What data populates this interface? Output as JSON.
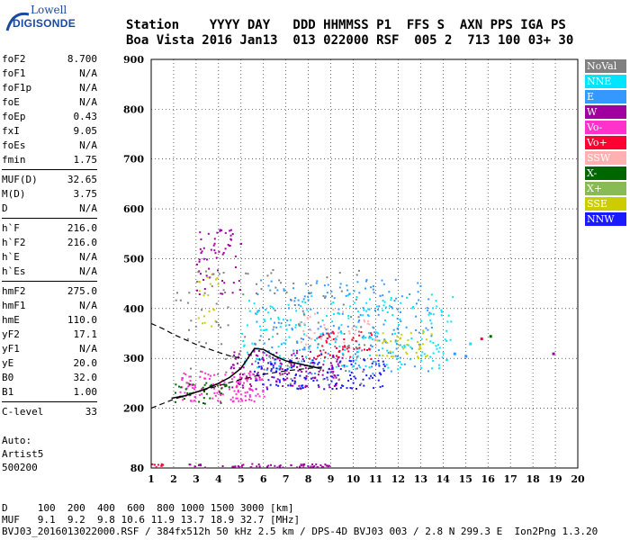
{
  "logo": {
    "line1": "Lowell",
    "line2": "DIGISONDE"
  },
  "header": {
    "labels": "Station    YYYY DAY   DDD HHMMSS P1  FFS S  AXN PPS IGA PS",
    "values": "Boa Vista 2016 Jan13  013 022000 RSF  005 2  713 100 03+ 30"
  },
  "params": [
    {
      "group": [
        {
          "name": "foF2",
          "value": "8.700"
        },
        {
          "name": "foF1",
          "value": "N/A"
        },
        {
          "name": "foF1p",
          "value": "N/A"
        },
        {
          "name": "foE",
          "value": "N/A"
        },
        {
          "name": "foEp",
          "value": "0.43"
        },
        {
          "name": "fxI",
          "value": "9.05"
        },
        {
          "name": "foEs",
          "value": "N/A"
        },
        {
          "name": "fmin",
          "value": "1.75"
        }
      ]
    },
    {
      "group": [
        {
          "name": "MUF(D)",
          "value": "32.65"
        },
        {
          "name": "M(D)",
          "value": "3.75"
        },
        {
          "name": "D",
          "value": "N/A"
        }
      ]
    },
    {
      "group": [
        {
          "name": "h`F",
          "value": "216.0"
        },
        {
          "name": "h`F2",
          "value": "216.0"
        },
        {
          "name": "h`E",
          "value": "N/A"
        },
        {
          "name": "h`Es",
          "value": "N/A"
        }
      ]
    },
    {
      "group": [
        {
          "name": "hmF2",
          "value": "275.0"
        },
        {
          "name": "hmF1",
          "value": "N/A"
        },
        {
          "name": "hmE",
          "value": "110.0"
        },
        {
          "name": "yF2",
          "value": "17.1"
        },
        {
          "name": "yF1",
          "value": "N/A"
        },
        {
          "name": "yE",
          "value": "20.0"
        },
        {
          "name": "B0",
          "value": "32.0"
        },
        {
          "name": "B1",
          "value": "1.00"
        }
      ]
    },
    {
      "group": [
        {
          "name": "C-level",
          "value": "33"
        }
      ]
    }
  ],
  "auto": {
    "line1": "Auto:",
    "line2": "Artist5",
    "line3": "500200"
  },
  "footer": {
    "line1": "D     100  200  400  600  800 1000 1500 3000 [km]",
    "line2": "MUF   9.1  9.2  9.8 10.6 11.9 13.7 18.9 32.7 [MHz]",
    "line3": "BVJ03_2016013022000.RSF / 384fx512h 50 kHz 2.5 km / DPS-4D BVJ03 003 / 2.8 N 299.3 E  Ion2Png 1.3.20"
  },
  "legend": [
    {
      "label": "NoVal",
      "color": "#808080"
    },
    {
      "label": "NNE",
      "color": "#00e5ff"
    },
    {
      "label": "E",
      "color": "#3399ff"
    },
    {
      "label": "W",
      "color": "#a000a0"
    },
    {
      "label": "Vo-",
      "color": "#ff33cc"
    },
    {
      "label": "Vo+",
      "color": "#ff0033"
    },
    {
      "label": "SSW",
      "color": "#ffb0b0"
    },
    {
      "label": "X-",
      "color": "#006600"
    },
    {
      "label": "X+",
      "color": "#88bb55"
    },
    {
      "label": "SSE",
      "color": "#cccc00"
    },
    {
      "label": "NNW",
      "color": "#1a1aff"
    }
  ],
  "chart_data": {
    "type": "scatter",
    "title": "",
    "xlabel": "",
    "ylabel": "",
    "xlim": [
      1,
      20
    ],
    "ylim": [
      80,
      900
    ],
    "x_ticks": [
      1,
      2,
      3,
      4,
      5,
      6,
      7,
      8,
      9,
      10,
      11,
      12,
      13,
      14,
      15,
      16,
      17,
      18,
      19,
      20
    ],
    "y_ticks": [
      80,
      200,
      300,
      400,
      500,
      600,
      700,
      800,
      900
    ],
    "grid": true,
    "legend_position": "right",
    "clusters": [
      {
        "name": "E",
        "x": [
          5.5,
          13.5
        ],
        "y": [
          270,
          460
        ],
        "count": 220
      },
      {
        "name": "NNE",
        "x": [
          5.0,
          14.5
        ],
        "y": [
          280,
          430
        ],
        "count": 220
      },
      {
        "name": "W",
        "x": [
          4.5,
          9.5
        ],
        "y": [
          240,
          320
        ],
        "count": 150
      },
      {
        "name": "Vo-",
        "x": [
          2.2,
          6.0
        ],
        "y": [
          215,
          275
        ],
        "count": 130
      },
      {
        "name": "Vo+",
        "x": [
          8.0,
          10.8
        ],
        "y": [
          300,
          360
        ],
        "count": 50
      },
      {
        "name": "NNW",
        "x": [
          5.5,
          11.5
        ],
        "y": [
          240,
          300
        ],
        "count": 130
      },
      {
        "name": "X-",
        "x": [
          2.0,
          4.5
        ],
        "y": [
          210,
          255
        ],
        "count": 40
      },
      {
        "name": "SSW",
        "x": [
          7.5,
          11.0
        ],
        "y": [
          320,
          400
        ],
        "count": 40
      },
      {
        "name": "SSE",
        "x": [
          11.0,
          13.5
        ],
        "y": [
          300,
          360
        ],
        "count": 40
      },
      {
        "name": "W",
        "x": [
          3.0,
          5.0
        ],
        "y": [
          430,
          560
        ],
        "count": 60
      },
      {
        "name": "SSE",
        "x": [
          3.0,
          4.0
        ],
        "y": [
          360,
          470
        ],
        "count": 20
      },
      {
        "name": "NoVal",
        "x": [
          2.0,
          10.5
        ],
        "y": [
          250,
          480
        ],
        "count": 120
      },
      {
        "name": "W",
        "x": [
          2.5,
          9.0
        ],
        "y": [
          82,
          90
        ],
        "count": 60
      },
      {
        "name": "Vo+",
        "x": [
          1.0,
          1.5
        ],
        "y": [
          82,
          90
        ],
        "count": 8
      }
    ],
    "outlier_points": [
      {
        "name": "E",
        "x": 14.5,
        "y": 310
      },
      {
        "name": "E",
        "x": 15.0,
        "y": 305
      },
      {
        "name": "NNE",
        "x": 15.2,
        "y": 330
      },
      {
        "name": "Vo+",
        "x": 15.7,
        "y": 340
      },
      {
        "name": "X-",
        "x": 16.1,
        "y": 345
      },
      {
        "name": "W",
        "x": 18.9,
        "y": 310
      }
    ],
    "profile_curve": {
      "x": [
        1.9,
        2.5,
        3.0,
        3.5,
        4.0,
        4.5,
        5.0,
        5.3,
        5.6,
        6.0,
        6.5,
        7.0,
        7.5,
        8.0,
        8.5
      ],
      "y": [
        220,
        225,
        232,
        240,
        250,
        262,
        280,
        300,
        320,
        318,
        305,
        295,
        290,
        285,
        280
      ]
    },
    "dashed_upper": {
      "x": [
        1.0,
        1.5,
        2.0,
        2.5,
        3.0,
        3.5,
        4.0,
        4.5,
        5.0
      ],
      "y": [
        370,
        360,
        348,
        338,
        328,
        320,
        312,
        305,
        300
      ]
    },
    "dashed_lower": {
      "x": [
        1.0,
        2.0,
        3.0,
        4.0,
        5.0,
        6.0,
        7.0,
        8.0,
        8.7
      ],
      "y": [
        200,
        218,
        232,
        245,
        258,
        268,
        275,
        280,
        283
      ]
    }
  }
}
